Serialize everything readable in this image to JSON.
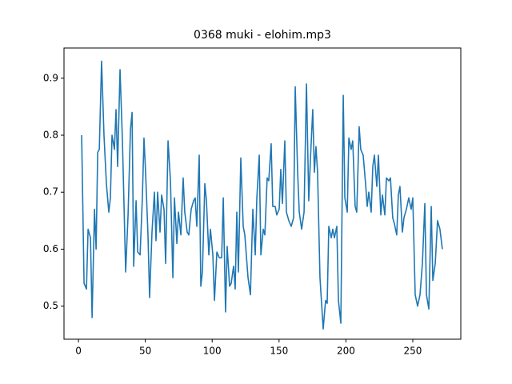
{
  "chart_data": {
    "type": "line",
    "title": "0368 muki - elohim.mp3",
    "x": [
      2.4,
      4.2,
      6.0,
      7.2,
      9.0,
      10.2,
      12.0,
      13.2,
      14.4,
      15.6,
      17.3,
      19.1,
      20.9,
      22.7,
      23.9,
      25.1,
      26.9,
      28.1,
      29.3,
      31.1,
      32.9,
      35.3,
      37.1,
      38.9,
      40.1,
      41.3,
      43.1,
      44.3,
      46.1,
      47.8,
      49.0,
      50.2,
      52.0,
      53.2,
      55.0,
      56.8,
      58.0,
      59.2,
      61.0,
      62.2,
      64.0,
      65.2,
      67.0,
      68.8,
      70.6,
      71.8,
      73.6,
      74.8,
      76.6,
      78.3,
      79.5,
      81.3,
      82.5,
      84.3,
      86.1,
      87.3,
      88.5,
      90.3,
      91.5,
      92.7,
      94.5,
      95.7,
      97.5,
      98.7,
      100.5,
      101.7,
      103.5,
      105.3,
      107.1,
      108.3,
      110.0,
      111.2,
      113.0,
      114.2,
      116.0,
      117.2,
      118.4,
      119.6,
      121.4,
      123.2,
      124.4,
      126.8,
      128.6,
      130.4,
      132.2,
      133.4,
      135.2,
      136.4,
      138.2,
      139.4,
      141.1,
      142.3,
      144.1,
      145.3,
      147.1,
      148.3,
      150.1,
      151.3,
      152.5,
      154.3,
      155.5,
      157.3,
      159.1,
      160.9,
      162.1,
      163.9,
      165.1,
      166.9,
      168.7,
      170.5,
      172.2,
      173.4,
      175.2,
      176.4,
      177.6,
      178.8,
      180.6,
      183.0,
      184.8,
      186.0,
      187.2,
      189.0,
      190.2,
      191.4,
      193.2,
      194.4,
      196.2,
      198.0,
      199.2,
      201.0,
      202.2,
      203.9,
      205.1,
      206.9,
      208.1,
      209.9,
      211.1,
      212.9,
      214.7,
      215.9,
      217.1,
      218.9,
      220.1,
      221.3,
      223.1,
      224.3,
      226.1,
      227.3,
      229.1,
      230.3,
      232.1,
      233.3,
      235.0,
      236.2,
      238.0,
      239.2,
      240.4,
      242.2,
      243.4,
      245.2,
      247.0,
      248.8,
      250.0,
      251.8,
      253.6,
      255.4,
      257.2,
      259.0,
      260.2,
      262.0,
      263.8,
      265.0,
      266.8,
      268.5,
      270.3,
      272.1
    ],
    "series": [
      {
        "color": "#1f77b4",
        "values": [
          0.8,
          0.54,
          0.53,
          0.635,
          0.62,
          0.48,
          0.67,
          0.6,
          0.77,
          0.775,
          0.93,
          0.8,
          0.715,
          0.665,
          0.69,
          0.8,
          0.775,
          0.845,
          0.745,
          0.915,
          0.79,
          0.56,
          0.66,
          0.81,
          0.84,
          0.57,
          0.685,
          0.595,
          0.59,
          0.69,
          0.795,
          0.735,
          0.625,
          0.515,
          0.63,
          0.7,
          0.615,
          0.7,
          0.63,
          0.695,
          0.67,
          0.575,
          0.79,
          0.72,
          0.55,
          0.69,
          0.61,
          0.665,
          0.625,
          0.725,
          0.665,
          0.63,
          0.625,
          0.67,
          0.685,
          0.69,
          0.64,
          0.765,
          0.535,
          0.56,
          0.715,
          0.685,
          0.59,
          0.635,
          0.59,
          0.51,
          0.595,
          0.585,
          0.585,
          0.69,
          0.49,
          0.605,
          0.535,
          0.54,
          0.57,
          0.53,
          0.665,
          0.56,
          0.76,
          0.64,
          0.625,
          0.55,
          0.52,
          0.67,
          0.59,
          0.69,
          0.765,
          0.59,
          0.635,
          0.625,
          0.725,
          0.72,
          0.785,
          0.675,
          0.675,
          0.66,
          0.67,
          0.74,
          0.68,
          0.79,
          0.665,
          0.65,
          0.64,
          0.655,
          0.885,
          0.735,
          0.665,
          0.635,
          0.665,
          0.89,
          0.685,
          0.755,
          0.845,
          0.735,
          0.78,
          0.735,
          0.55,
          0.46,
          0.51,
          0.505,
          0.64,
          0.62,
          0.635,
          0.62,
          0.64,
          0.51,
          0.47,
          0.87,
          0.69,
          0.665,
          0.795,
          0.775,
          0.79,
          0.675,
          0.665,
          0.815,
          0.775,
          0.765,
          0.715,
          0.675,
          0.7,
          0.665,
          0.745,
          0.765,
          0.71,
          0.765,
          0.66,
          0.695,
          0.66,
          0.725,
          0.72,
          0.725,
          0.655,
          0.645,
          0.625,
          0.695,
          0.71,
          0.63,
          0.655,
          0.67,
          0.69,
          0.67,
          0.69,
          0.52,
          0.5,
          0.52,
          0.575,
          0.68,
          0.52,
          0.495,
          0.675,
          0.545,
          0.575,
          0.65,
          0.635,
          0.6
        ]
      }
    ],
    "xlim": [
      -10.8,
      285.9
    ],
    "ylim": [
      0.442,
      0.953
    ],
    "xticks": [
      0,
      50,
      100,
      150,
      200,
      250
    ],
    "yticks": [
      0.5,
      0.6,
      0.7,
      0.8,
      0.9
    ]
  }
}
